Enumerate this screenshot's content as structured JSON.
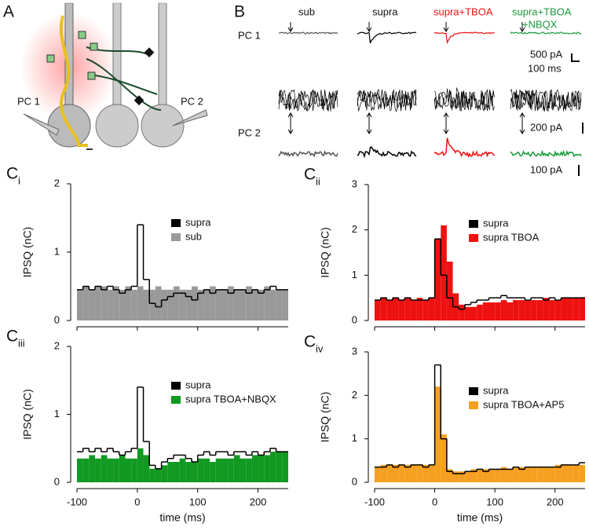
{
  "panel_a": {
    "label": "A",
    "cells": [
      "PC 1",
      "PC 2"
    ]
  },
  "panel_b": {
    "label": "B",
    "conditions": [
      "sub",
      "supra",
      "supra+TBOA",
      "supra+TBOA",
      "+NBQX"
    ],
    "cells": [
      "PC 1",
      "PC 2"
    ],
    "scale_bars": [
      "500 pA",
      "100 ms",
      "200 pA",
      "100 pA"
    ]
  },
  "chart_data": [
    {
      "type": "histogram",
      "label": "C",
      "label_sub": "i",
      "ylabel": "IPSQ (nC)",
      "show_xticklabels": false,
      "bins": [
        -100,
        -90,
        -80,
        -70,
        -60,
        -50,
        -40,
        -30,
        -20,
        -10,
        0,
        10,
        20,
        30,
        40,
        50,
        60,
        70,
        80,
        90,
        100,
        110,
        120,
        130,
        140,
        150,
        160,
        170,
        180,
        190,
        200,
        210,
        220,
        230,
        240,
        250
      ],
      "xlim": [
        -100,
        250
      ],
      "xticks": [
        -100,
        0,
        100,
        200
      ],
      "ylim": [
        0,
        2
      ],
      "yticks": [
        0,
        1,
        2
      ],
      "series": [
        {
          "name": "supra",
          "color": "#000000",
          "values": [
            0.45,
            0.5,
            0.45,
            0.5,
            0.45,
            0.5,
            0.45,
            0.4,
            0.45,
            0.5,
            1.4,
            0.6,
            0.25,
            0.2,
            0.3,
            0.35,
            0.4,
            0.4,
            0.35,
            0.3,
            0.4,
            0.45,
            0.4,
            0.45,
            0.45,
            0.4,
            0.45,
            0.45,
            0.4,
            0.45,
            0.4,
            0.45,
            0.5,
            0.45,
            0.45
          ]
        },
        {
          "name": "sub",
          "color": "#999999",
          "values": [
            0.45,
            0.5,
            0.45,
            0.5,
            0.5,
            0.45,
            0.5,
            0.45,
            0.5,
            0.45,
            0.5,
            0.45,
            0.45,
            0.5,
            0.45,
            0.45,
            0.5,
            0.45,
            0.45,
            0.5,
            0.45,
            0.45,
            0.5,
            0.45,
            0.45,
            0.5,
            0.45,
            0.45,
            0.5,
            0.45,
            0.45,
            0.5,
            0.45,
            0.45,
            0.45
          ]
        }
      ]
    },
    {
      "type": "histogram",
      "label": "C",
      "label_sub": "ii",
      "ylabel": "IPSQ (nC)",
      "show_xticklabels": false,
      "bins": [
        -100,
        -90,
        -80,
        -70,
        -60,
        -50,
        -40,
        -30,
        -20,
        -10,
        0,
        10,
        20,
        30,
        40,
        50,
        60,
        70,
        80,
        90,
        100,
        110,
        120,
        130,
        140,
        150,
        160,
        170,
        180,
        190,
        200,
        210,
        220,
        230,
        240,
        250
      ],
      "xlim": [
        -100,
        250
      ],
      "xticks": [
        -100,
        0,
        100,
        200
      ],
      "ylim": [
        0,
        3
      ],
      "yticks": [
        0,
        1,
        2,
        3
      ],
      "series": [
        {
          "name": "supra",
          "color": "#000000",
          "values": [
            0.45,
            0.5,
            0.45,
            0.5,
            0.45,
            0.5,
            0.45,
            0.45,
            0.45,
            0.5,
            1.8,
            1.0,
            0.5,
            0.3,
            0.25,
            0.35,
            0.4,
            0.45,
            0.45,
            0.5,
            0.5,
            0.55,
            0.5,
            0.5,
            0.5,
            0.45,
            0.5,
            0.5,
            0.45,
            0.5,
            0.45,
            0.5,
            0.5,
            0.5,
            0.5
          ]
        },
        {
          "name": "supra TBOA",
          "color": "#ee1111",
          "values": [
            0.45,
            0.5,
            0.45,
            0.5,
            0.45,
            0.5,
            0.45,
            0.5,
            0.45,
            0.5,
            1.8,
            2.1,
            1.3,
            0.6,
            0.35,
            0.3,
            0.3,
            0.35,
            0.4,
            0.4,
            0.4,
            0.45,
            0.4,
            0.45,
            0.45,
            0.45,
            0.45,
            0.45,
            0.5,
            0.45,
            0.45,
            0.5,
            0.5,
            0.5,
            0.5
          ]
        }
      ]
    },
    {
      "type": "histogram",
      "label": "C",
      "label_sub": "iii",
      "ylabel": "IPSQ (nC)",
      "xlabel": "time (ms)",
      "show_xticklabels": true,
      "bins": [
        -100,
        -90,
        -80,
        -70,
        -60,
        -50,
        -40,
        -30,
        -20,
        -10,
        0,
        10,
        20,
        30,
        40,
        50,
        60,
        70,
        80,
        90,
        100,
        110,
        120,
        130,
        140,
        150,
        160,
        170,
        180,
        190,
        200,
        210,
        220,
        230,
        240,
        250
      ],
      "xlim": [
        -100,
        250
      ],
      "xticks": [
        -100,
        0,
        100,
        200
      ],
      "ylim": [
        0,
        2
      ],
      "yticks": [
        0,
        1,
        2
      ],
      "series": [
        {
          "name": "supra",
          "color": "#000000",
          "values": [
            0.45,
            0.5,
            0.45,
            0.5,
            0.45,
            0.5,
            0.45,
            0.4,
            0.45,
            0.5,
            1.4,
            0.6,
            0.25,
            0.2,
            0.3,
            0.35,
            0.4,
            0.4,
            0.35,
            0.3,
            0.4,
            0.45,
            0.4,
            0.45,
            0.45,
            0.4,
            0.45,
            0.45,
            0.4,
            0.45,
            0.4,
            0.45,
            0.5,
            0.45,
            0.45
          ]
        },
        {
          "name": "supra TBOA+NBQX",
          "color": "#119922",
          "values": [
            0.35,
            0.35,
            0.4,
            0.35,
            0.4,
            0.35,
            0.35,
            0.4,
            0.35,
            0.35,
            0.5,
            0.4,
            0.2,
            0.2,
            0.25,
            0.3,
            0.3,
            0.35,
            0.3,
            0.3,
            0.35,
            0.35,
            0.3,
            0.35,
            0.35,
            0.35,
            0.4,
            0.35,
            0.35,
            0.4,
            0.4,
            0.4,
            0.45,
            0.45,
            0.45
          ]
        }
      ]
    },
    {
      "type": "histogram",
      "label": "C",
      "label_sub": "iv",
      "ylabel": "IPSQ (nC)",
      "xlabel": "time (ms)",
      "show_xticklabels": true,
      "bins": [
        -100,
        -90,
        -80,
        -70,
        -60,
        -50,
        -40,
        -30,
        -20,
        -10,
        0,
        10,
        20,
        30,
        40,
        50,
        60,
        70,
        80,
        90,
        100,
        110,
        120,
        130,
        140,
        150,
        160,
        170,
        180,
        190,
        200,
        210,
        220,
        230,
        240,
        250
      ],
      "xlim": [
        -100,
        250
      ],
      "xticks": [
        -100,
        0,
        100,
        200
      ],
      "ylim": [
        0,
        3
      ],
      "yticks": [
        0,
        1,
        2,
        3
      ],
      "series": [
        {
          "name": "supra",
          "color": "#000000",
          "values": [
            0.35,
            0.35,
            0.4,
            0.35,
            0.4,
            0.35,
            0.4,
            0.4,
            0.35,
            0.4,
            2.7,
            1.0,
            0.25,
            0.2,
            0.2,
            0.25,
            0.25,
            0.3,
            0.25,
            0.3,
            0.3,
            0.3,
            0.3,
            0.35,
            0.3,
            0.35,
            0.35,
            0.35,
            0.35,
            0.35,
            0.35,
            0.4,
            0.4,
            0.4,
            0.45
          ]
        },
        {
          "name": "supra TBOA+AP5",
          "color": "#f5a020",
          "values": [
            0.35,
            0.4,
            0.4,
            0.4,
            0.4,
            0.4,
            0.4,
            0.4,
            0.4,
            0.4,
            2.2,
            1.1,
            0.3,
            0.25,
            0.25,
            0.25,
            0.3,
            0.3,
            0.3,
            0.3,
            0.3,
            0.35,
            0.3,
            0.35,
            0.35,
            0.35,
            0.35,
            0.35,
            0.35,
            0.35,
            0.4,
            0.4,
            0.4,
            0.4,
            0.4
          ]
        }
      ]
    }
  ]
}
